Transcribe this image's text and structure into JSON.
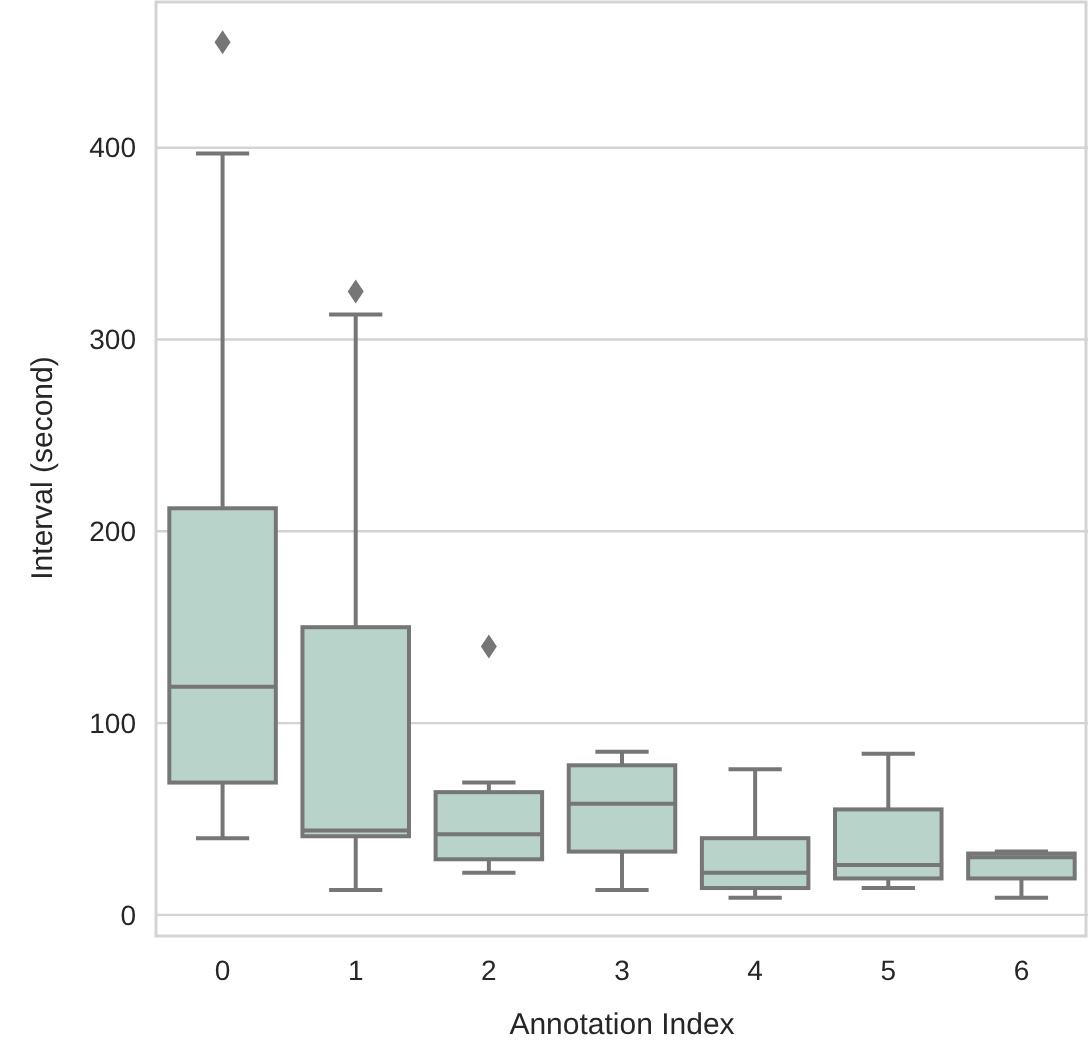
{
  "chart_data": {
    "type": "box",
    "xlabel": "Annotation Index",
    "ylabel": "Interval (second)",
    "categories": [
      "0",
      "1",
      "2",
      "3",
      "4",
      "5",
      "6"
    ],
    "color": "#b7d3ca",
    "boxes": [
      {
        "low": 40,
        "q1": 69,
        "median": 119,
        "q3": 212,
        "high": 397,
        "outliers": [
          455
        ]
      },
      {
        "low": 13,
        "q1": 41,
        "median": 44,
        "q3": 150,
        "high": 313,
        "outliers": [
          325
        ]
      },
      {
        "low": 22,
        "q1": 29,
        "median": 42,
        "q3": 64,
        "high": 69,
        "outliers": [
          140
        ]
      },
      {
        "low": 13,
        "q1": 33,
        "median": 58,
        "q3": 78,
        "high": 85
      },
      {
        "low": 9,
        "q1": 14,
        "median": 22,
        "q3": 40,
        "high": 76
      },
      {
        "low": 14,
        "q1": 19,
        "median": 26,
        "q3": 55,
        "high": 84
      },
      {
        "low": 9,
        "q1": 19,
        "median": 30,
        "q3": 32,
        "high": 33
      }
    ],
    "ylim": [
      -11,
      477
    ],
    "yticks": [
      0,
      100,
      200,
      300,
      400
    ],
    "grid": "y",
    "marker": "diamond"
  }
}
